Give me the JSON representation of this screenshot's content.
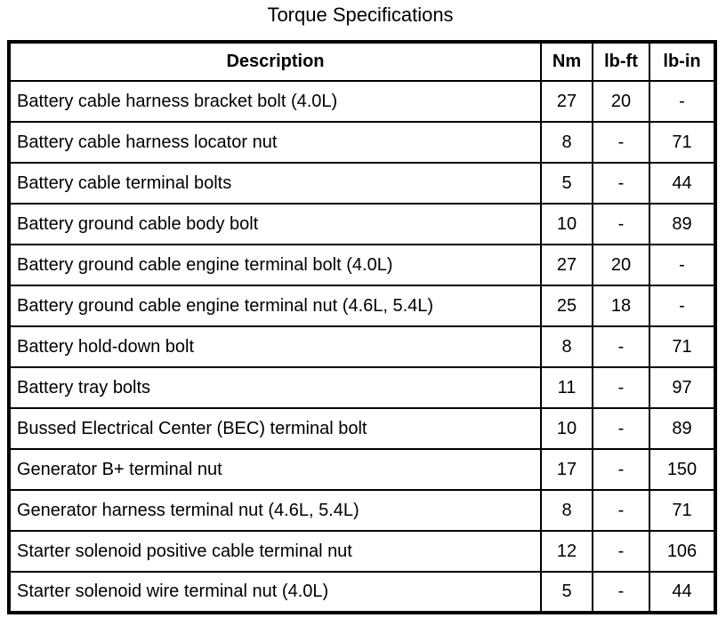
{
  "title": "Torque Specifications",
  "table": {
    "columns": [
      "Description",
      "Nm",
      "lb-ft",
      "lb-in"
    ],
    "rows": [
      {
        "description": "Battery cable harness bracket bolt (4.0L)",
        "nm": "27",
        "lb_ft": "20",
        "lb_in": "-"
      },
      {
        "description": "Battery cable harness locator nut",
        "nm": "8",
        "lb_ft": "-",
        "lb_in": "71"
      },
      {
        "description": "Battery cable terminal bolts",
        "nm": "5",
        "lb_ft": "-",
        "lb_in": "44"
      },
      {
        "description": "Battery ground cable body bolt",
        "nm": "10",
        "lb_ft": "-",
        "lb_in": "89"
      },
      {
        "description": "Battery ground cable engine terminal bolt (4.0L)",
        "nm": "27",
        "lb_ft": "20",
        "lb_in": "-"
      },
      {
        "description": "Battery ground cable engine terminal nut (4.6L, 5.4L)",
        "nm": "25",
        "lb_ft": "18",
        "lb_in": "-"
      },
      {
        "description": "Battery hold-down bolt",
        "nm": "8",
        "lb_ft": "-",
        "lb_in": "71"
      },
      {
        "description": "Battery tray bolts",
        "nm": "11",
        "lb_ft": "-",
        "lb_in": "97"
      },
      {
        "description": "Bussed Electrical Center (BEC) terminal bolt",
        "nm": "10",
        "lb_ft": "-",
        "lb_in": "89"
      },
      {
        "description": "Generator B+ terminal nut",
        "nm": "17",
        "lb_ft": "-",
        "lb_in": "150"
      },
      {
        "description": "Generator harness terminal nut (4.6L, 5.4L)",
        "nm": "8",
        "lb_ft": "-",
        "lb_in": "71"
      },
      {
        "description": "Starter solenoid positive cable terminal nut",
        "nm": "12",
        "lb_ft": "-",
        "lb_in": "106"
      },
      {
        "description": "Starter solenoid wire terminal nut (4.0L)",
        "nm": "5",
        "lb_ft": "-",
        "lb_in": "44"
      }
    ],
    "border_color": "#000000",
    "background_color": "#ffffff"
  }
}
